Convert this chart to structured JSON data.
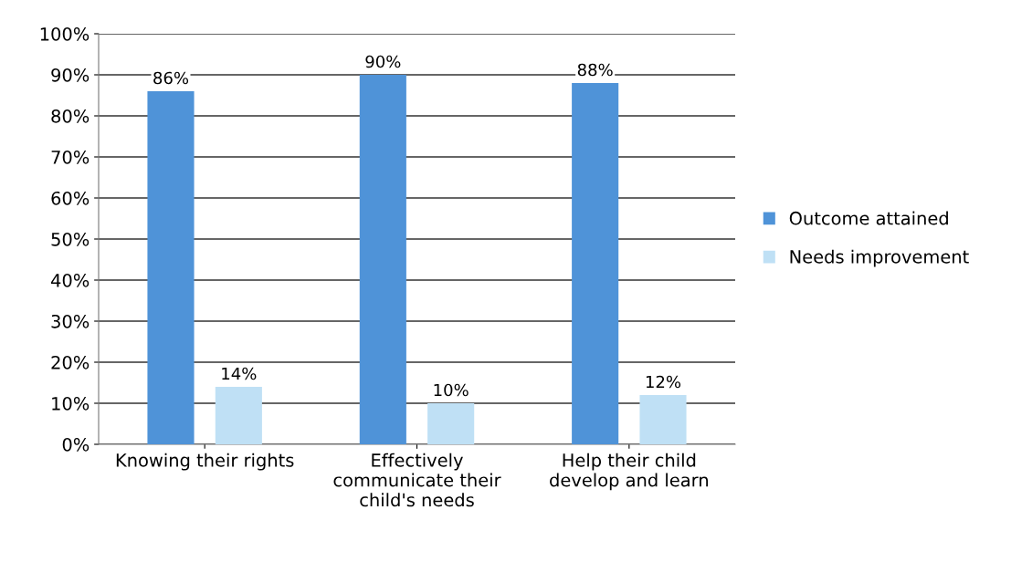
{
  "chart_data": {
    "type": "bar",
    "categories": [
      "Knowing their rights",
      "Effectively\ncommunicate their\nchild's needs",
      "Help their child\ndevelop and learn"
    ],
    "series": [
      {
        "name": "Outcome attained",
        "color": "#4f93d8",
        "values": [
          86,
          90,
          88
        ],
        "value_labels": [
          "86%",
          "90%",
          "88%"
        ]
      },
      {
        "name": "Needs improvement",
        "color": "#bfe0f5",
        "values": [
          14,
          10,
          12
        ],
        "value_labels": [
          "14%",
          "10%",
          "12%"
        ]
      }
    ],
    "ylim": [
      0,
      100
    ],
    "yticks": [
      {
        "value": 0,
        "label": "0%"
      },
      {
        "value": 10,
        "label": "10%"
      },
      {
        "value": 20,
        "label": "20%"
      },
      {
        "value": 30,
        "label": "30%"
      },
      {
        "value": 40,
        "label": "40%"
      },
      {
        "value": 50,
        "label": "50%"
      },
      {
        "value": 60,
        "label": "60%"
      },
      {
        "value": 70,
        "label": "70%"
      },
      {
        "value": 80,
        "label": "80%"
      },
      {
        "value": 90,
        "label": "90%"
      },
      {
        "value": 100,
        "label": "100%"
      }
    ],
    "grid": "y",
    "legend": "right"
  }
}
